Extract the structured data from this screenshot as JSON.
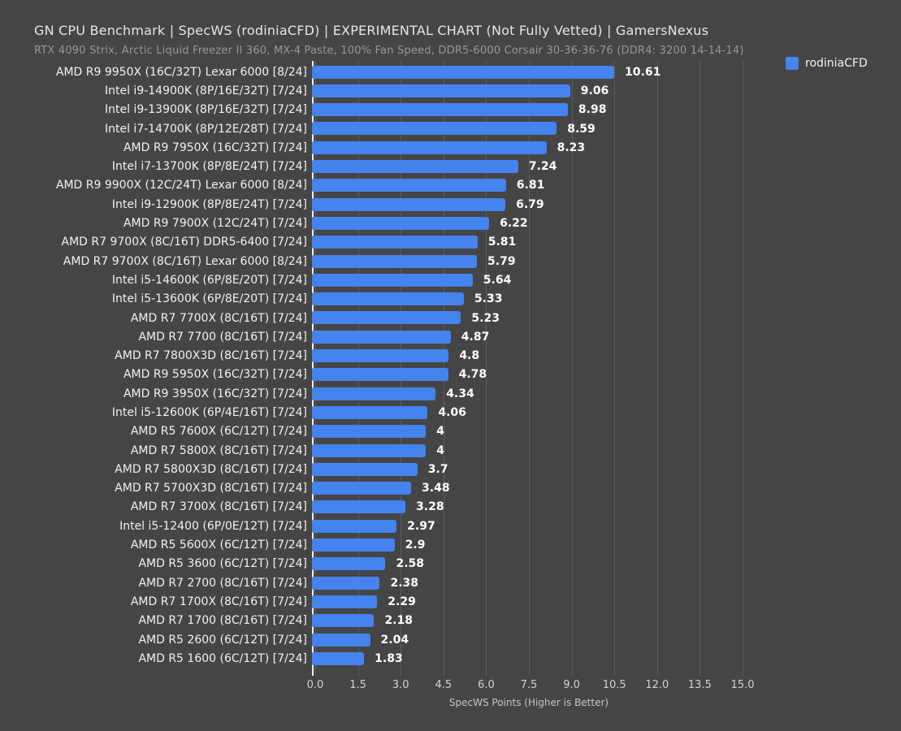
{
  "header": {
    "title": "GN CPU Benchmark | SpecWS (rodiniaCFD) | EXPERIMENTAL CHART (Not Fully Vetted) | GamersNexus",
    "subtitle": "RTX 4090 Strix, Arctic Liquid Freezer II 360, MX-4 Paste, 100% Fan Speed, DDR5-6000 Corsair 30-36-36-76 (DDR4: 3200 14-14-14)"
  },
  "legend": {
    "label": "rodiniaCFD",
    "swatch_color": "#4583ee"
  },
  "colors": {
    "background": "#454545",
    "bar": "#4583ee",
    "gridline": "#5d5d5d",
    "axis_line": "#efefef",
    "title_text": "#e6e6e6",
    "subtitle_text": "#989898",
    "category_text": "#f2f2f2",
    "value_text": "#ffffff",
    "tick_text": "#d2d2d2"
  },
  "chart_data": {
    "type": "bar",
    "orientation": "horizontal",
    "title": "GN CPU Benchmark | SpecWS (rodiniaCFD) | EXPERIMENTAL CHART (Not Fully Vetted) | GamersNexus",
    "subtitle": "RTX 4090 Strix, Arctic Liquid Freezer II 360, MX-4 Paste, 100% Fan Speed, DDR5-6000 Corsair 30-36-36-76 (DDR4: 3200 14-14-14)",
    "xlabel": "SpecWS Points (Higher is Better)",
    "ylabel": "",
    "xlim": [
      0,
      15
    ],
    "xticks": [
      0.0,
      1.5,
      3.0,
      4.5,
      6.0,
      7.5,
      9.0,
      10.5,
      12.0,
      13.5,
      15.0
    ],
    "xtick_labels": [
      "0.0",
      "1.5",
      "3.0",
      "4.5",
      "6.0",
      "7.5",
      "9.0",
      "10.5",
      "12.0",
      "13.5",
      "15.0"
    ],
    "grid": "vertical-only",
    "legend_position": "top-right",
    "series_name": "rodiniaCFD",
    "categories": [
      "AMD R9 9950X (16C/32T) Lexar 6000 [8/24]",
      "Intel i9-14900K (8P/16E/32T) [7/24]",
      "Intel i9-13900K (8P/16E/32T) [7/24]",
      "Intel i7-14700K (8P/12E/28T) [7/24]",
      "AMD R9 7950X (16C/32T) [7/24]",
      "Intel i7-13700K (8P/8E/24T) [7/24]",
      "AMD R9 9900X (12C/24T) Lexar 6000 [8/24]",
      "Intel i9-12900K (8P/8E/24T) [7/24]",
      "AMD R9 7900X (12C/24T) [7/24]",
      "AMD R7 9700X (8C/16T) DDR5-6400 [7/24]",
      "AMD R7 9700X (8C/16T) Lexar 6000 [8/24]",
      "Intel i5-14600K (6P/8E/20T) [7/24]",
      "Intel i5-13600K (6P/8E/20T) [7/24]",
      "AMD R7 7700X (8C/16T) [7/24]",
      "AMD R7 7700 (8C/16T) [7/24]",
      "AMD R7 7800X3D (8C/16T) [7/24]",
      "AMD R9 5950X (16C/32T) [7/24]",
      "AMD R9 3950X (16C/32T) [7/24]",
      "Intel i5-12600K (6P/4E/16T) [7/24]",
      "AMD R5 7600X (6C/12T) [7/24]",
      "AMD R7 5800X (8C/16T) [7/24]",
      "AMD R7 5800X3D (8C/16T) [7/24]",
      "AMD R7 5700X3D (8C/16T) [7/24]",
      "AMD R7 3700X (8C/16T) [7/24]",
      "Intel i5-12400 (6P/0E/12T) [7/24]",
      "AMD R5 5600X (6C/12T) [7/24]",
      "AMD R5 3600 (6C/12T) [7/24]",
      "AMD R7 2700 (8C/16T) [7/24]",
      "AMD R7 1700X (8C/16T) [7/24]",
      "AMD R7 1700 (8C/16T) [7/24]",
      "AMD R5 2600 (6C/12T) [7/24]",
      "AMD R5 1600 (6C/12T) [7/24]"
    ],
    "values": [
      10.61,
      9.06,
      8.98,
      8.59,
      8.23,
      7.24,
      6.81,
      6.79,
      6.22,
      5.81,
      5.79,
      5.64,
      5.33,
      5.23,
      4.87,
      4.8,
      4.78,
      4.34,
      4.06,
      4,
      4,
      3.7,
      3.48,
      3.28,
      2.97,
      2.9,
      2.58,
      2.38,
      2.29,
      2.18,
      2.04,
      1.83
    ],
    "value_labels": [
      "10.61",
      "9.06",
      "8.98",
      "8.59",
      "8.23",
      "7.24",
      "6.81",
      "6.79",
      "6.22",
      "5.81",
      "5.79",
      "5.64",
      "5.33",
      "5.23",
      "4.87",
      "4.8",
      "4.78",
      "4.34",
      "4.06",
      "4",
      "4",
      "3.7",
      "3.48",
      "3.28",
      "2.97",
      "2.9",
      "2.58",
      "2.38",
      "2.29",
      "2.18",
      "2.04",
      "1.83"
    ]
  }
}
